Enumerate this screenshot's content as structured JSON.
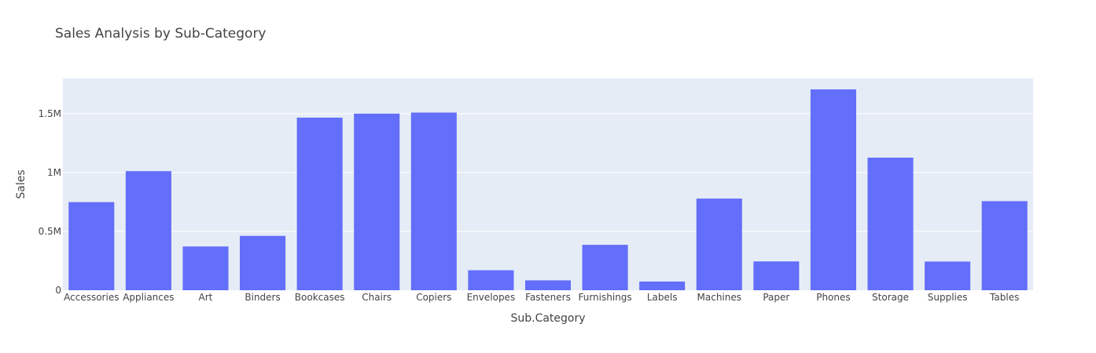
{
  "chart_data": {
    "type": "bar",
    "title": "Sales Analysis by Sub-Category",
    "xlabel": "Sub.Category",
    "ylabel": "Sales",
    "categories": [
      "Accessories",
      "Appliances",
      "Art",
      "Binders",
      "Bookcases",
      "Chairs",
      "Copiers",
      "Envelopes",
      "Fasteners",
      "Furnishings",
      "Labels",
      "Machines",
      "Paper",
      "Phones",
      "Storage",
      "Supplies",
      "Tables"
    ],
    "values": [
      749000,
      1012000,
      372000,
      462000,
      1467000,
      1501000,
      1510000,
      170000,
      84000,
      386000,
      74000,
      779000,
      245000,
      1707000,
      1127000,
      244000,
      757000
    ],
    "ylim": [
      0,
      1800000
    ],
    "yticks": [
      0,
      500000,
      1000000,
      1500000
    ],
    "yticklabels": [
      "0",
      "0.5M",
      "1M",
      "1.5M"
    ],
    "grid": true,
    "legend": "none",
    "colors": {
      "bar": "#636efa",
      "plot_bg": "#e5ecf6",
      "grid": "#ffffff",
      "text": "#444444"
    }
  }
}
